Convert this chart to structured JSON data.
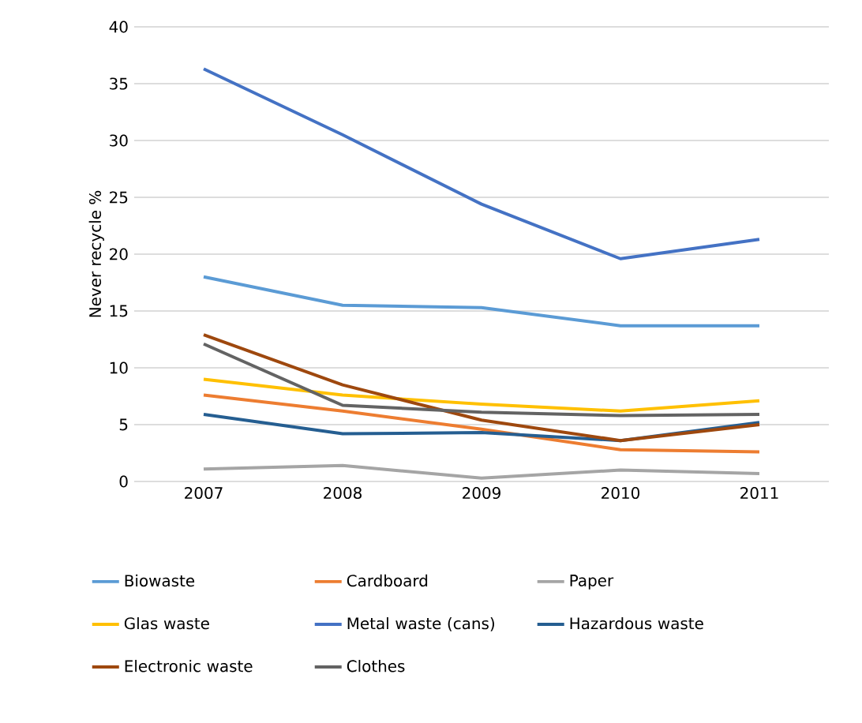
{
  "chart_data": {
    "type": "line",
    "ylabel": "Never recycle %",
    "categories": [
      "2007",
      "2008",
      "2009",
      "2010",
      "2011"
    ],
    "ylim": [
      0,
      40
    ],
    "yticks": [
      0,
      5,
      10,
      15,
      20,
      25,
      30,
      35,
      40
    ],
    "grid": "y",
    "legend": "bottom",
    "marker": "none",
    "series": [
      {
        "name": "Biowaste",
        "color": "#5b9bd5",
        "values": [
          18.0,
          15.5,
          15.3,
          13.7,
          13.7
        ]
      },
      {
        "name": "Cardboard",
        "color": "#ed7d31",
        "values": [
          7.6,
          6.2,
          4.6,
          2.8,
          2.6
        ]
      },
      {
        "name": "Paper",
        "color": "#a5a5a5",
        "values": [
          1.1,
          1.4,
          0.3,
          1.0,
          0.7
        ]
      },
      {
        "name": "Glas waste",
        "color": "#ffc000",
        "values": [
          9.0,
          7.6,
          6.8,
          6.2,
          7.1
        ]
      },
      {
        "name": "Metal waste (cans)",
        "color": "#4472c4",
        "values": [
          36.3,
          30.5,
          24.4,
          19.6,
          21.3
        ]
      },
      {
        "name": "Hazardous waste",
        "color": "#255e91",
        "values": [
          5.9,
          4.2,
          4.3,
          3.6,
          5.2
        ]
      },
      {
        "name": "Electronic waste",
        "color": "#9e480e",
        "values": [
          12.9,
          8.5,
          5.4,
          3.6,
          5.0
        ]
      },
      {
        "name": "Clothes",
        "color": "#636363",
        "values": [
          12.1,
          6.7,
          6.1,
          5.8,
          5.9
        ]
      }
    ]
  }
}
